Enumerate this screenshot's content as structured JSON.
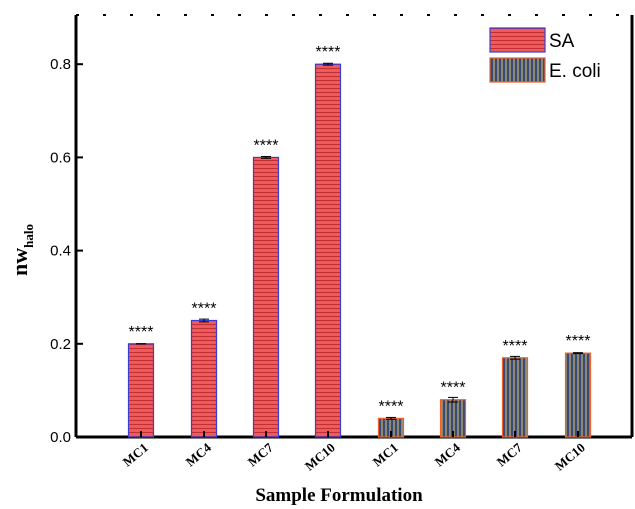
{
  "chart_data": {
    "type": "bar",
    "xlabel": "Sample Formulation",
    "ylabel": "nw",
    "ylabel_sub": "halo",
    "ylim": [
      0,
      0.9
    ],
    "yticks": [
      "0.0",
      "0.2",
      "0.4",
      "0.6",
      "0.8"
    ],
    "ytick_values": [
      0,
      0.2,
      0.4,
      0.6,
      0.8
    ],
    "categories": [
      "MC1",
      "MC4",
      "MC7",
      "MC10",
      "MC1",
      "MC4",
      "MC7",
      "MC10"
    ],
    "series": [
      {
        "name": "SA",
        "fill": "#f05a5a",
        "stripe": "#b0262a",
        "stripe_dir": "horizontal",
        "edge": "#3b3bd6",
        "values": [
          0.2,
          0.25,
          0.6,
          0.8,
          null,
          null,
          null,
          null
        ],
        "errors": [
          0.0,
          0.003,
          0.002,
          0.002,
          null,
          null,
          null,
          null
        ]
      },
      {
        "name": "E. coli",
        "fill": "#3a4a78",
        "stripe": "#e0c86a",
        "stripe_dir": "vertical",
        "edge": "#f0622a",
        "values": [
          null,
          null,
          null,
          null,
          0.04,
          0.08,
          0.17,
          0.18
        ],
        "errors": [
          null,
          null,
          null,
          null,
          0.002,
          0.005,
          0.003,
          0.001
        ]
      }
    ],
    "annotations": [
      "****",
      "****",
      "****",
      "****",
      "****",
      "****",
      "****",
      "****"
    ],
    "legend_position": "top-right",
    "grid": false
  }
}
